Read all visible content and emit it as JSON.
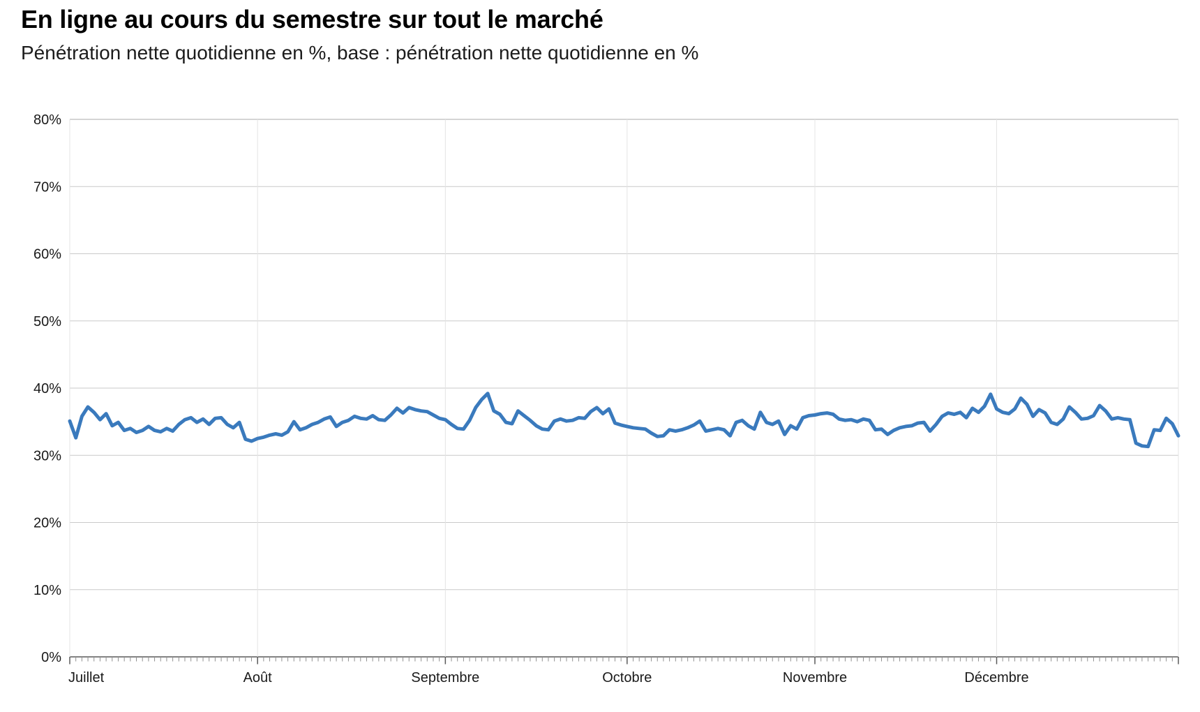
{
  "header": {
    "title": "En ligne au cours du semestre sur tout le marché",
    "subtitle": "Pénétration nette quotidienne en %, base : pénétration nette quotidienne en %"
  },
  "chart_data": {
    "type": "line",
    "title": "En ligne au cours du semestre sur tout le marché",
    "subtitle": "Pénétration nette quotidienne en %, base : pénétration nette quotidienne en %",
    "unit": "%",
    "grid": true,
    "legend": "none",
    "y_axis": {
      "min": 0,
      "max": 80,
      "step": 10,
      "tick_suffix": "%"
    },
    "x_axis": {
      "months": [
        "Juillet",
        "Août",
        "Septembre",
        "Octobre",
        "Novembre",
        "Décembre"
      ],
      "days_per_month": [
        31,
        31,
        30,
        31,
        30,
        31
      ],
      "minor_tick": "day"
    },
    "series": [
      {
        "name": "Pénétration nette quotidienne",
        "color": "#3a7abd",
        "values": [
          35.1,
          32.6,
          35.8,
          37.2,
          36.4,
          35.3,
          36.2,
          34.4,
          34.9,
          33.7,
          34.0,
          33.4,
          33.7,
          34.3,
          33.7,
          33.5,
          34.0,
          33.6,
          34.6,
          35.3,
          35.6,
          34.9,
          35.4,
          34.6,
          35.5,
          35.6,
          34.6,
          34.1,
          34.9,
          32.4,
          32.1,
          32.5,
          32.7,
          33.0,
          33.2,
          33.0,
          33.5,
          35.0,
          33.8,
          34.1,
          34.6,
          34.9,
          35.4,
          35.7,
          34.3,
          34.9,
          35.2,
          35.8,
          35.5,
          35.4,
          35.9,
          35.3,
          35.2,
          36.0,
          37.0,
          36.3,
          37.1,
          36.8,
          36.6,
          36.5,
          36.0,
          35.5,
          35.3,
          34.6,
          34.0,
          33.9,
          35.2,
          37.1,
          38.3,
          39.2,
          36.6,
          36.1,
          34.9,
          34.7,
          36.6,
          35.9,
          35.2,
          34.4,
          33.9,
          33.8,
          35.1,
          35.4,
          35.1,
          35.2,
          35.6,
          35.5,
          36.5,
          37.1,
          36.2,
          36.9,
          34.8,
          34.5,
          34.3,
          34.1,
          34.0,
          33.9,
          33.3,
          32.8,
          32.9,
          33.8,
          33.6,
          33.8,
          34.1,
          34.5,
          35.1,
          33.6,
          33.8,
          34.0,
          33.8,
          32.9,
          34.9,
          35.2,
          34.4,
          33.9,
          36.4,
          34.9,
          34.6,
          35.1,
          33.1,
          34.4,
          33.9,
          35.6,
          35.9,
          36.0,
          36.2,
          36.3,
          36.1,
          35.4,
          35.2,
          35.3,
          35.0,
          35.4,
          35.2,
          33.8,
          33.9,
          33.1,
          33.7,
          34.1,
          34.3,
          34.4,
          34.8,
          34.9,
          33.6,
          34.6,
          35.8,
          36.3,
          36.1,
          36.4,
          35.6,
          37.0,
          36.4,
          37.3,
          39.1,
          36.9,
          36.4,
          36.2,
          36.9,
          38.5,
          37.6,
          35.8,
          36.8,
          36.3,
          34.9,
          34.6,
          35.4,
          37.2,
          36.4,
          35.4,
          35.5,
          35.9,
          37.4,
          36.6,
          35.4,
          35.6,
          35.4,
          35.3,
          31.8,
          31.4,
          31.3,
          33.8,
          33.7,
          35.5,
          34.7,
          32.9
        ]
      }
    ],
    "colors": {
      "line": "#3a7abd",
      "gridline": "#c9c9c9",
      "top_gridline": "#ababab",
      "month_gridline": "#e4e4e4",
      "axis": "#5a5a5a",
      "minor_tick": "#8f8f8f"
    }
  }
}
